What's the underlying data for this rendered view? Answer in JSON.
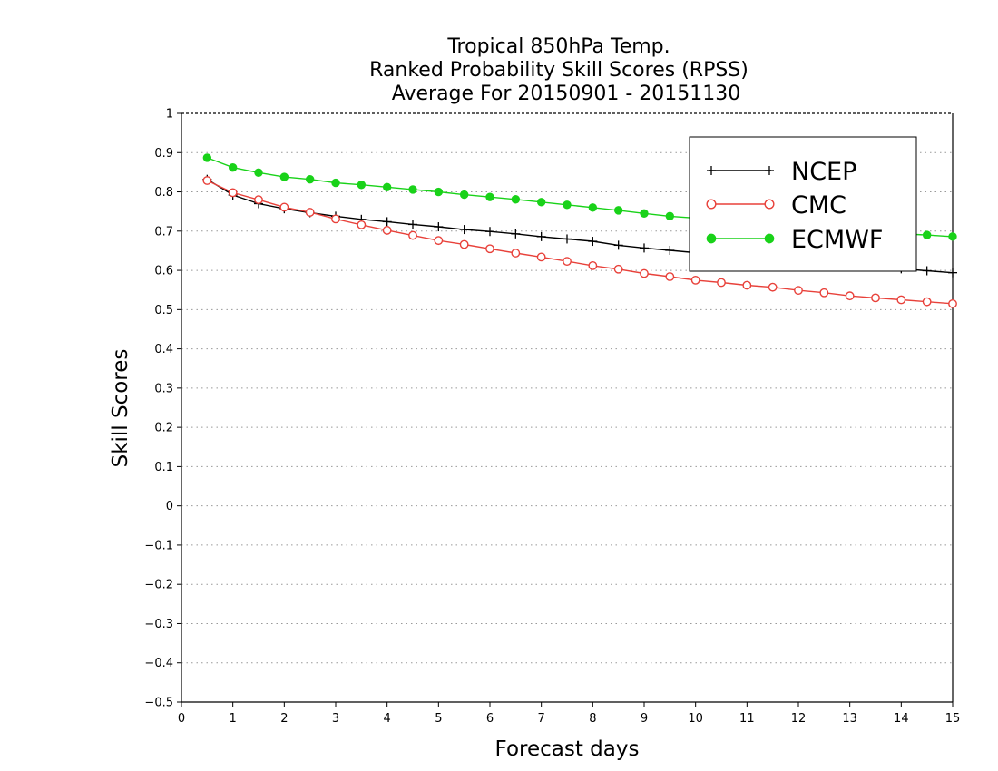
{
  "chart_data": {
    "type": "line",
    "title": [
      "Tropical 850hPa Temp.",
      "Ranked Probability Skill Scores (RPSS)",
      "Average For 20150901 - 20151130"
    ],
    "xlabel": "Forecast days",
    "ylabel": "Skill Scores",
    "xlim": [
      0,
      15
    ],
    "ylim": [
      -0.5,
      1
    ],
    "xticks": [
      "0",
      "1",
      "2",
      "3",
      "4",
      "5",
      "6",
      "7",
      "8",
      "9",
      "10",
      "11",
      "12",
      "13",
      "14",
      "15"
    ],
    "yticks": [
      "−0.5",
      "−0.4",
      "−0.3",
      "−0.2",
      "−0.1",
      "0",
      "0.1",
      "0.2",
      "0.3",
      "0.4",
      "0.5",
      "0.6",
      "0.7",
      "0.8",
      "0.9",
      "1"
    ],
    "grid": true,
    "legend_position": "top-right",
    "x": [
      0.5,
      1,
      1.5,
      2,
      2.5,
      3,
      3.5,
      4,
      4.5,
      5,
      5.5,
      6,
      6.5,
      7,
      7.5,
      8,
      8.5,
      9,
      9.5,
      10,
      10.5,
      11,
      11.5,
      12,
      12.5,
      13,
      13.5,
      14,
      14.5,
      15
    ],
    "series": [
      {
        "name": "NCEP",
        "color": "#000000",
        "marker": "plus",
        "values": [
          0.832,
          0.792,
          0.77,
          0.757,
          0.747,
          0.738,
          0.73,
          0.724,
          0.717,
          0.711,
          0.704,
          0.699,
          0.693,
          0.686,
          0.68,
          0.674,
          0.664,
          0.657,
          0.651,
          0.645,
          0.64,
          0.636,
          0.632,
          0.627,
          0.621,
          0.616,
          0.61,
          0.604,
          0.599,
          0.594
        ]
      },
      {
        "name": "CMC",
        "color": "#e8413a",
        "marker": "open-circle",
        "values": [
          0.829,
          0.798,
          0.78,
          0.761,
          0.748,
          0.731,
          0.716,
          0.702,
          0.689,
          0.676,
          0.666,
          0.655,
          0.644,
          0.634,
          0.623,
          0.612,
          0.603,
          0.592,
          0.584,
          0.575,
          0.569,
          0.562,
          0.557,
          0.549,
          0.543,
          0.535,
          0.53,
          0.525,
          0.52,
          0.515
        ]
      },
      {
        "name": "ECMWF",
        "color": "#19d219",
        "marker": "filled-circle",
        "values": [
          0.887,
          0.862,
          0.849,
          0.838,
          0.832,
          0.823,
          0.818,
          0.812,
          0.806,
          0.8,
          0.793,
          0.787,
          0.781,
          0.774,
          0.767,
          0.76,
          0.753,
          0.745,
          0.738,
          0.733,
          0.727,
          0.722,
          0.717,
          0.712,
          0.707,
          0.702,
          0.697,
          0.693,
          0.69,
          0.686
        ]
      }
    ]
  }
}
